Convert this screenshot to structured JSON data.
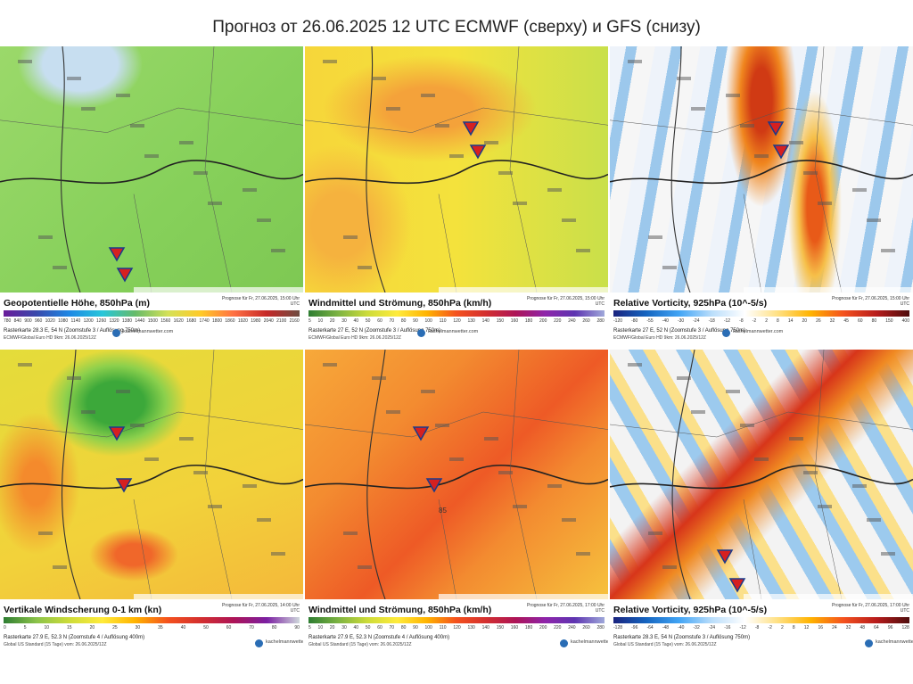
{
  "title": "Прогноз от 26.06.2025 12 UTC ECMWF (сверху) и GFS (снизу)",
  "brand": "kachelmannwetter.com",
  "panels": [
    {
      "caption": "Geopotentielle Höhe, 850hPa (m)",
      "forecast": "Prognose für Fr, 27.06.2025, 15:00 Uhr UTC",
      "ticks": [
        "780",
        "840",
        "900",
        "960",
        "1020",
        "1080",
        "1140",
        "1200",
        "1260",
        "1320",
        "1380",
        "1440",
        "1500",
        "1560",
        "1620",
        "1680",
        "1740",
        "1800",
        "1860",
        "1920",
        "1980",
        "2040",
        "2100",
        "2160"
      ],
      "location": "Rasterkarte 28.3 E, 54 N (Zoomstufe 3 / Auflösung 750m)",
      "model": "ECMWF/Global Euro HD 9km: 26.06.2025/12Z"
    },
    {
      "caption": "Windmittel und Strömung, 850hPa (km/h)",
      "forecast": "Prognose für Fr, 27.06.2025, 15:00 Uhr UTC",
      "ticks": [
        "5",
        "10",
        "20",
        "30",
        "40",
        "50",
        "60",
        "70",
        "80",
        "90",
        "100",
        "110",
        "120",
        "130",
        "140",
        "150",
        "160",
        "180",
        "200",
        "220",
        "240",
        "260",
        "280"
      ],
      "location": "Rasterkarte 27 E, 52 N (Zoomstufe 3 / Auflösung 750m)",
      "model": "ECMWF/Global Euro HD 9km: 26.06.2025/12Z"
    },
    {
      "caption": "Relative Vorticity, 925hPa (10^-5/s)",
      "forecast": "Prognose für Fr, 27.06.2025, 15:00 Uhr UTC",
      "ticks": [
        "-120",
        "-80",
        "-55",
        "-40",
        "-30",
        "-24",
        "-18",
        "-12",
        "-8",
        "-2",
        "2",
        "8",
        "14",
        "20",
        "26",
        "32",
        "45",
        "60",
        "80",
        "150",
        "400"
      ],
      "location": "Rasterkarte 27 E, 52 N (Zoomstufe 3 / Auflösung 750m)",
      "model": "ECMWF/Global Euro HD 9km: 26.06.2025/12Z"
    },
    {
      "caption": "Vertikale Windscherung 0-1 km (kn)",
      "forecast": "Prognose für Fr, 27.06.2025, 14:00 Uhr UTC",
      "ticks": [
        "0",
        "5",
        "10",
        "15",
        "20",
        "25",
        "30",
        "35",
        "40",
        "50",
        "60",
        "70",
        "80",
        "90"
      ],
      "location": "Rasterkarte 27.9 E, 52.3 N (Zoomstufe 4 / Auflösung 400m)",
      "model": "Global US Standard (15 Tage) vom: 26.06.2025/12Z"
    },
    {
      "caption": "Windmittel und Strömung, 850hPa (km/h)",
      "forecast": "Prognose für Fr, 27.06.2025, 17:00 Uhr UTC",
      "ticks": [
        "5",
        "10",
        "20",
        "30",
        "40",
        "50",
        "60",
        "70",
        "80",
        "90",
        "100",
        "110",
        "120",
        "130",
        "140",
        "150",
        "160",
        "180",
        "200",
        "220",
        "240",
        "260",
        "280"
      ],
      "location": "Rasterkarte 27.9 E, 52.3 N (Zoomstufe 4 / Auflösung 400m)",
      "model": "Global US Standard (15 Tage) vom: 26.06.2025/12Z",
      "annotation": "85"
    },
    {
      "caption": "Relative Vorticity, 925hPa (10^-5/s)",
      "forecast": "Prognose für Fr, 27.06.2025, 17:00 Uhr UTC",
      "ticks": [
        "-128",
        "-96",
        "-64",
        "-48",
        "-40",
        "-32",
        "-24",
        "-16",
        "-12",
        "-8",
        "-2",
        "2",
        "8",
        "12",
        "16",
        "24",
        "32",
        "48",
        "64",
        "96",
        "128"
      ],
      "location": "Rasterkarte 28.3 E, 54 N (Zoomstufe 3 / Auflösung 750m)",
      "model": "Global US Standard (15 Tage) vom: 26.06.2025/12Z"
    }
  ]
}
